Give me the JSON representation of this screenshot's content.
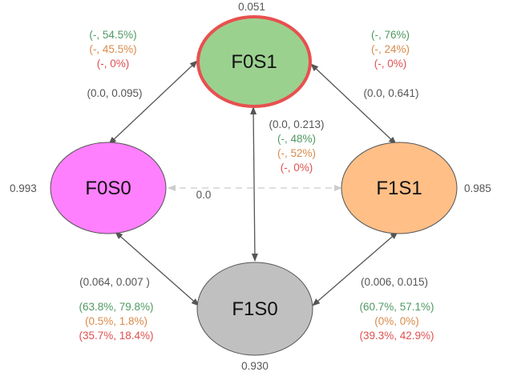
{
  "nodes": {
    "f0s1": {
      "label": "F0S1",
      "value": "0.051",
      "fill": "#9bd18f",
      "stroke": "#e8504f"
    },
    "f0s0": {
      "label": "F0S0",
      "value": "0.993",
      "fill": "#ff80ff",
      "stroke": "#555555"
    },
    "f1s1": {
      "label": "F1S1",
      "value": "0.985",
      "fill": "#ffbf87",
      "stroke": "#555555"
    },
    "f1s0": {
      "label": "F1S0",
      "value": "0.930",
      "fill": "#c0c0c0",
      "stroke": "#555555"
    }
  },
  "edges": {
    "f0s0_f0s1": {
      "range": "(0.0, 0.095)",
      "green": "(-, 54.5%)",
      "orange": "(-, 45.5%)",
      "red": "(-, 0%)"
    },
    "f0s1_f1s1": {
      "range": "(0.0, 0.641)",
      "green": "(-, 76%)",
      "orange": "(-, 24%)",
      "red": "(-, 0%)"
    },
    "f0s1_f1s0": {
      "range": "(0.0, 0.213)",
      "green": "(-, 48%)",
      "orange": "(-, 52%)",
      "red": "(-, 0%)"
    },
    "f0s0_f1s1": {
      "range": "0.0"
    },
    "f0s0_f1s0": {
      "range": "(0.064, 0.007 )",
      "green": "(63.8%, 79.8%)",
      "orange": "(0.5%, 1.8%)",
      "red": "(35.7%, 18.4%)"
    },
    "f1s1_f1s0": {
      "range": "(0.006, 0.015)",
      "green": "(60.7%, 57.1%)",
      "orange": "(0%, 0%)",
      "red": "(39.3%, 42.9%)"
    }
  },
  "colors": {
    "arrow": "#555555",
    "dashed_arrow": "#cccccc",
    "label_gray": "#555555",
    "green": "#4f9a63",
    "orange": "#d98a4a",
    "red": "#e05050"
  }
}
